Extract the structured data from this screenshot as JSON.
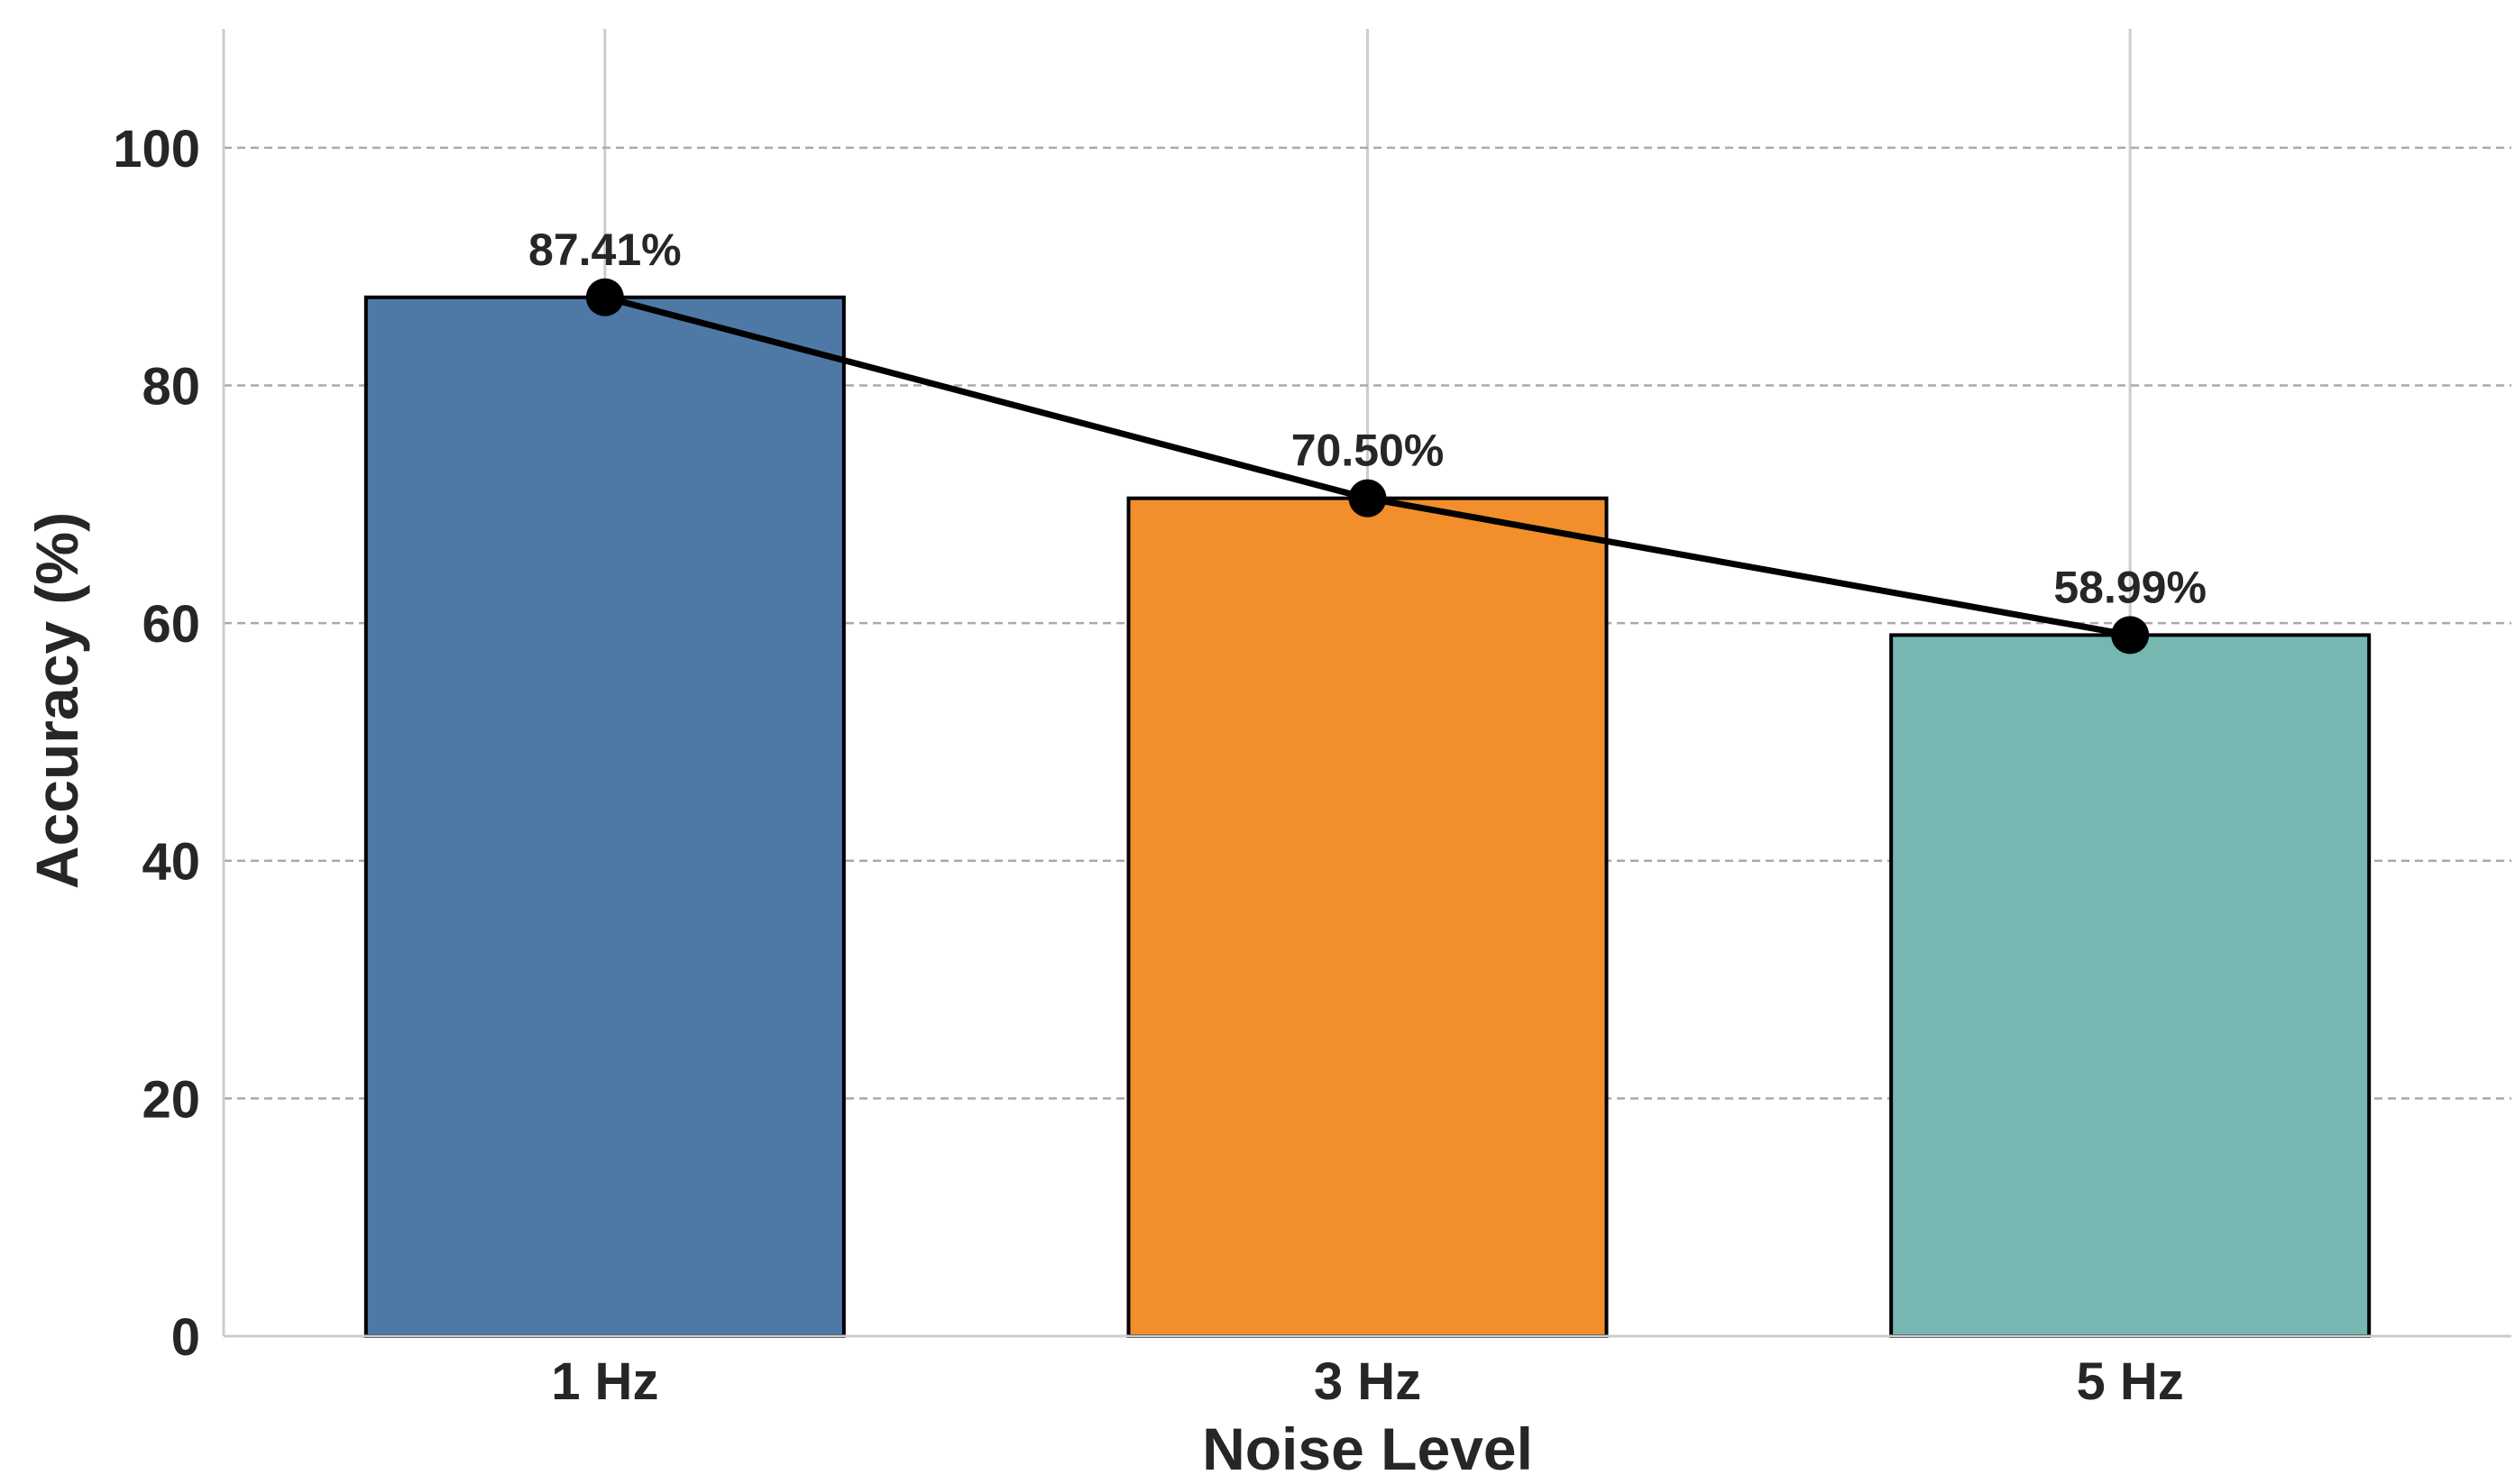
{
  "chart_data": {
    "type": "bar",
    "title": "",
    "xlabel": "Noise Level",
    "ylabel": "Accuracy (%)",
    "categories": [
      "1 Hz",
      "3 Hz",
      "5 Hz"
    ],
    "values": [
      87.41,
      70.5,
      58.99
    ],
    "data_labels": [
      "87.41%",
      "70.50%",
      "58.99%"
    ],
    "ylim": [
      0,
      110
    ],
    "yticks": [
      0,
      20,
      40,
      60,
      80,
      100
    ],
    "ytick_labels": [
      "0",
      "20",
      "40",
      "60",
      "80",
      "100"
    ],
    "bar_colors": [
      "#4e79a7",
      "#f28e2b",
      "#76b7b2"
    ],
    "bar_edge_color": "#000000",
    "overlay_line": {
      "type": "line",
      "values": [
        87.41,
        70.5,
        58.99
      ],
      "color": "#000000",
      "marker": "circle"
    },
    "grid": {
      "y": true,
      "x": true,
      "y_style": "dashed",
      "y_color": "#aaaaaa",
      "x_color": "#cccccc"
    },
    "legend": null
  }
}
